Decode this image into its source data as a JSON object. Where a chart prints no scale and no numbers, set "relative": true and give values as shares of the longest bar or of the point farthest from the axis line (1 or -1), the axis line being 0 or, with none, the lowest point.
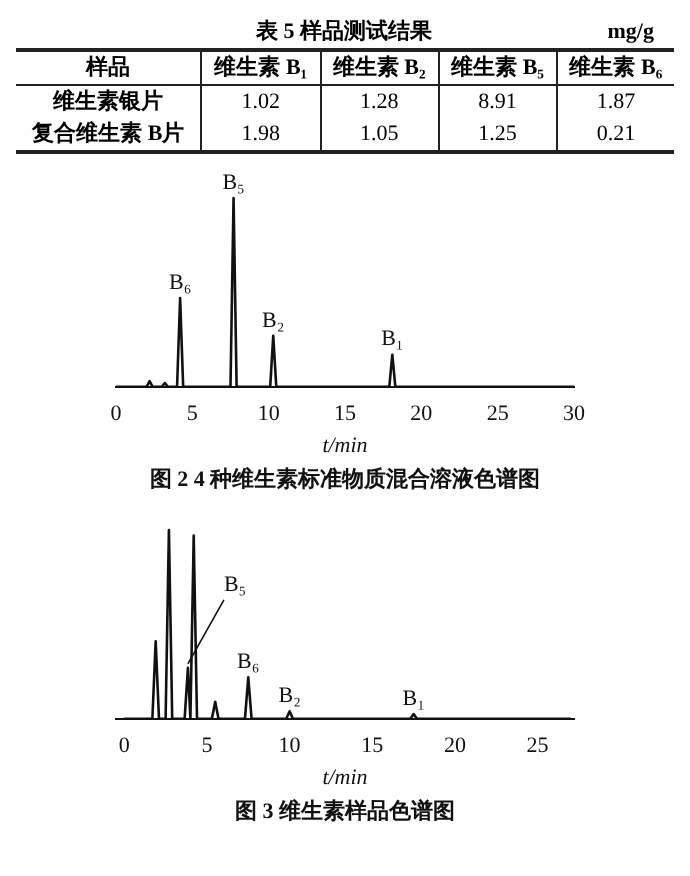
{
  "chart_data": [
    {
      "type": "heatmap",
      "title": "表 5 样品测试结果",
      "annotations": [
        "mg/g"
      ],
      "ylabel": "样品",
      "categories": [
        "维生素 B₁",
        "维生素 B₂",
        "维生素 B₅",
        "维生素 B₆"
      ],
      "y_categories": [
        "维生素银片",
        "复合维生素 B片"
      ],
      "cells": [
        [
          1.02,
          1.28,
          8.91,
          1.87
        ],
        [
          1.98,
          1.05,
          1.25,
          0.21
        ]
      ],
      "data_labels": true
    },
    {
      "type": "line",
      "title": "图 2 4 种维生素标准物质混合溶液色谱图",
      "xlabel": "t/min",
      "relative": true,
      "xlim": [
        0,
        30
      ],
      "xticks": [
        0,
        5,
        10,
        15,
        20,
        25,
        30
      ],
      "tick_labels": "x",
      "grid": false,
      "legend": false,
      "marker": "none",
      "series": [
        {
          "color": "#111111",
          "x": [
            0,
            2.0,
            2.2,
            2.4,
            3.0,
            3.2,
            3.4,
            4.0,
            4.2,
            4.4,
            7.5,
            7.7,
            7.9,
            10.1,
            10.3,
            10.5,
            17.9,
            18.1,
            18.3,
            30
          ],
          "values": [
            0,
            0,
            0.03,
            0,
            0,
            0.02,
            0,
            0,
            0.47,
            0,
            0,
            1,
            0,
            0,
            0.27,
            0,
            0,
            0.17,
            0,
            0
          ]
        }
      ],
      "annotations": [
        {
          "text": "B₆",
          "x": 4.2,
          "y": 0.47
        },
        {
          "text": "B₅",
          "x": 7.7,
          "y": 1
        },
        {
          "text": "B₂",
          "x": 10.3,
          "y": 0.27
        },
        {
          "text": "B₁",
          "x": 18.1,
          "y": 0.17
        }
      ]
    },
    {
      "type": "line",
      "title": "图 3 维生素样品色谱图",
      "xlabel": "t/min",
      "relative": true,
      "xlim": [
        -0.5,
        27.2
      ],
      "xticks": [
        0,
        5,
        10,
        15,
        20,
        25
      ],
      "tick_labels": "x",
      "grid": false,
      "legend": false,
      "marker": "none",
      "series": [
        {
          "color": "#111111",
          "x": [
            0,
            1.7,
            1.9,
            2.1,
            2.5,
            2.7,
            2.9,
            3.65,
            3.85,
            4.0,
            4.2,
            4.4,
            5.3,
            5.5,
            5.7,
            7.3,
            7.5,
            7.7,
            9.8,
            10.0,
            10.2,
            17.3,
            17.5,
            17.7,
            27
          ],
          "values": [
            0,
            0,
            0.41,
            0,
            0,
            1,
            0,
            0,
            0.27,
            0,
            0.97,
            0,
            0,
            0.09,
            0,
            0,
            0.22,
            0,
            0,
            0.04,
            0,
            0,
            0.025,
            0,
            0
          ]
        }
      ],
      "annotations": [
        {
          "text": "B₅",
          "x": 3.85,
          "y": 0.27
        },
        {
          "text": "B₆",
          "x": 7.5,
          "y": 0.22
        },
        {
          "text": "B₂",
          "x": 10.0,
          "y": 0.04
        },
        {
          "text": "B₁",
          "x": 17.5,
          "y": 0.025
        }
      ]
    }
  ]
}
